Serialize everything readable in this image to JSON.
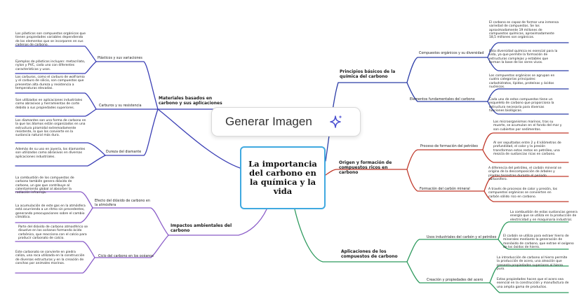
{
  "central": "La importancia del carbono en la química y la vida",
  "generate_button": {
    "label": "Generar Imagen",
    "icon": "sparkle-icon"
  },
  "colors": {
    "left_top": "#3b3fb5",
    "left_bottom": "#8a5cc8",
    "right_top": "#2c3da8",
    "right_middle": "#c0392b",
    "right_bottom": "#2e9a5e",
    "central_border": "#40a9e0"
  },
  "left": {
    "materiales": {
      "title": "Materiales basados en carbono y sus aplicaciones",
      "plasticos": {
        "label": "Plásticos y sus variaciones",
        "details": [
          "Los plásticos son compuestos orgánicos que tienen propiedades variables dependiendo de los elementos que se incorporen en sus cadenas de carbono.",
          "Ejemplos de plásticos incluyen: metacrilato, nylon y PVC, cada uno con diferentes características y usos."
        ]
      },
      "carburos": {
        "label": "Carburos y su resistencia",
        "details": [
          "Los carburos, como el carburo de wolframio y el carburo de silicio, son compuestos que presentan alta dureza y resistencia a temperaturas elevadas.",
          "Son utilizados en aplicaciones industriales como abrasivos y herramientas de corte debido a sus propiedades superiores."
        ]
      },
      "diamante": {
        "label": "Dureza del diamante",
        "details": [
          "Los diamantes son una forma de carbono en la que los átomos están organizados en una estructura piramidal extremadamente resistente, lo que los convierte en la sustancia natural más dura.",
          "Además de su uso en joyería, los diamantes son utilizados como abrasivos en diversas aplicaciones industriales."
        ]
      }
    },
    "impactos": {
      "title": "Impactos ambientales del carbono",
      "efecto": {
        "label": "Efecto del dióxido de carbono en la atmósfera",
        "details": [
          "La combustión de los compuestos de carbono también genera dióxido de carbono, un gas que contribuye al calentamiento global al absorber la radiación infrarroja.",
          "La acumulación de este gas en la atmósfera está ocurriendo a un ritmo sin precedentes, generando preocupaciones sobre el cambio climático."
        ]
      },
      "ciclo": {
        "label": "Ciclo del carbono en los océanos",
        "details": [
          "Parte del dióxido de carbono atmosférico se disuelve en los océanos formando ácido carbónico, que reacciona con el calcio para producir carbonato de calcio.",
          "Este carbonato se convierte en piedra caliza, una roca utilizada en la construcción de diversas estructuras y en la creación de conchas por animales marinos."
        ]
      }
    }
  },
  "right": {
    "principios": {
      "title": "Principios básicos de la química del carbono",
      "compuestos": {
        "label": "Compuestos orgánicos y su diversidad",
        "details": [
          "El carbono es capaz de formar una inmensa variedad de compuestos. Se los aproximadamente 19 millones de compuestos químicos, aproximadamente 18,5 millones son orgánicos.",
          "Esta diversidad química es esencial para la vida, ya que permite la formación de estructuras complejas y estables que forman la base de los seres vivos."
        ]
      },
      "elementos": {
        "label": "Elementos fundamentales del carbono",
        "details": [
          "Los compuestos orgánicos se agrupan en cuatro categorías principales: carbohidratos, lípidos, proteínas y ácidos nucleicos.",
          "Cada uno de estos compuestos tiene un esqueleto de carbono que proporciona la estructura necesaria para diversas funciones biológicas."
        ]
      }
    },
    "origen": {
      "title": "Origen y formación de compuestos ricos en carbono",
      "petroleo": {
        "label": "Proceso de formación del petróleo",
        "details": [
          "Los microorganismos marinos, tras su muerte, se acumulan en el fondo del mar y son cubiertos por sedimentos.",
          "Al ser sepultados entre 2 y 4 kilómetros de profundidad, el calor y la presión transforman estos restos en petróleo, una mezcla de sustancias ricas en carbono."
        ]
      },
      "carbon": {
        "label": "Formación del carbón mineral",
        "details": [
          "A diferencia del petróleo, el carbón mineral se origina de la descomposición de árboles y plantas terrestres durante el periodo carbonífero.",
          "A través de procesos de calor y presión, los compuestos orgánicos se convierten en carbón sólido rico en carbono."
        ]
      }
    },
    "aplicaciones": {
      "title": "Aplicaciones de los compuestos de carbono",
      "usos": {
        "label": "Usos industriales del carbón y el petróleo",
        "details": [
          "La combustión de estas sustancias genera energía que se utiliza en la producción de electricidad y en maquinaria industrial.",
          "El carbón se utiliza para extraer hierro de minerales mediante la generación de monóxido de carbono, que extrae el oxígeno de los óxidos de hierro."
        ]
      },
      "acero": {
        "label": "Creación y propiedades del acero",
        "details": [
          "La introducción de carbono al hierro permite la producción de acero, una aleación que presenta propiedades superiores al hierro puro.",
          "Estas propiedades hacen que el acero sea esencial en la construcción y manufactura de una amplia gama de productos."
        ]
      }
    }
  }
}
